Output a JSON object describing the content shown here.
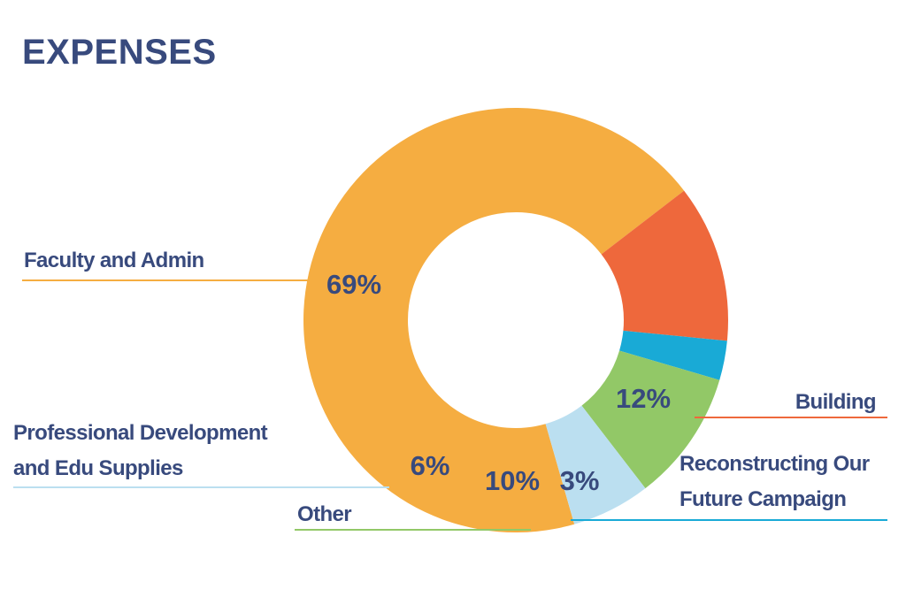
{
  "chart_data": {
    "type": "pie",
    "title": "EXPENSES",
    "donut": true,
    "categories": [
      "Faculty and Admin",
      "Building",
      "Reconstructing Our Future Campaign",
      "Other",
      "Professional Development and Edu Supplies"
    ],
    "values": [
      69,
      12,
      3,
      10,
      6
    ],
    "value_labels": [
      "69%",
      "12%",
      "3%",
      "10%",
      "6%"
    ],
    "label_lines": {
      "faculty": [
        "Faculty and Admin"
      ],
      "building": [
        "Building"
      ],
      "campaign": [
        "Reconstructing Our",
        "Future Campaign"
      ],
      "other": [
        "Other"
      ],
      "professional": [
        "Professional Development",
        "and Edu Supplies"
      ]
    },
    "colors": [
      "#f5ad41",
      "#ee683c",
      "#19aad6",
      "#92c867",
      "#bbdff0"
    ],
    "text_color": "#384a7d"
  }
}
